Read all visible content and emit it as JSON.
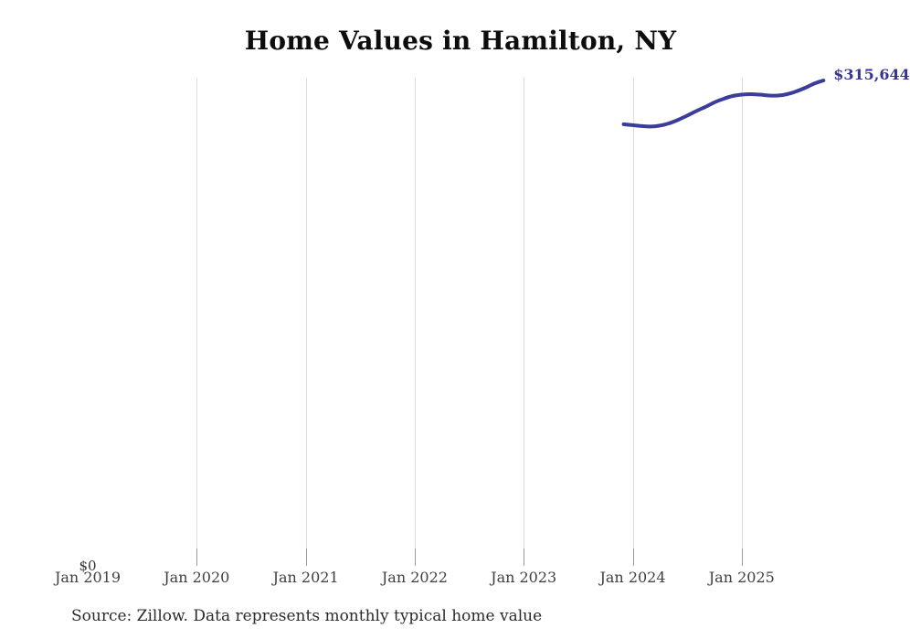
{
  "title": "Home Values in Hamilton, NY",
  "source_note": "Source: Zillow. Data represents monthly typical home value",
  "y_axis": {
    "zero_label": "$0"
  },
  "end_value_label": "$315,644",
  "colors": {
    "line": "#3c3c9b",
    "end_label": "#343495",
    "grid": "#dcdcdc",
    "tick": "#9a9a9a",
    "title_text": "#0d0d0d",
    "axis_text": "#3f3f3f",
    "source_text": "#2b2b2b",
    "background": "#ffffff"
  },
  "chart_data": {
    "type": "line",
    "title": "Home Values in Hamilton, NY",
    "xlabel": "",
    "ylabel": "",
    "ylim": [
      0,
      317000
    ],
    "grid": "vertical-only",
    "legend": "none",
    "x_tick_labels": [
      "Jan 2019",
      "Jan 2020",
      "Jan 2021",
      "Jan 2022",
      "Jan 2023",
      "Jan 2024",
      "Jan 2025"
    ],
    "gridlines_at": [
      "Jan 2020",
      "Jan 2021",
      "Jan 2022",
      "Jan 2023",
      "Jan 2024",
      "Jan 2025"
    ],
    "end_annotation": "$315,644",
    "series": [
      {
        "name": "Monthly typical home value",
        "points": [
          {
            "date": "2023-12",
            "value": 287100
          },
          {
            "date": "2024-01",
            "value": 286500
          },
          {
            "date": "2024-02",
            "value": 285900
          },
          {
            "date": "2024-03",
            "value": 285600
          },
          {
            "date": "2024-04",
            "value": 286200
          },
          {
            "date": "2024-05",
            "value": 287700
          },
          {
            "date": "2024-06",
            "value": 290000
          },
          {
            "date": "2024-07",
            "value": 292700
          },
          {
            "date": "2024-08",
            "value": 295700
          },
          {
            "date": "2024-09",
            "value": 298400
          },
          {
            "date": "2024-10",
            "value": 301400
          },
          {
            "date": "2024-11",
            "value": 303700
          },
          {
            "date": "2024-12",
            "value": 305500
          },
          {
            "date": "2025-01",
            "value": 306400
          },
          {
            "date": "2025-02",
            "value": 306700
          },
          {
            "date": "2025-03",
            "value": 306400
          },
          {
            "date": "2025-04",
            "value": 305800
          },
          {
            "date": "2025-05",
            "value": 305800
          },
          {
            "date": "2025-06",
            "value": 306700
          },
          {
            "date": "2025-07",
            "value": 308500
          },
          {
            "date": "2025-08",
            "value": 310900
          },
          {
            "date": "2025-09",
            "value": 313600
          },
          {
            "date": "2025-10",
            "value": 315644
          }
        ]
      }
    ]
  }
}
